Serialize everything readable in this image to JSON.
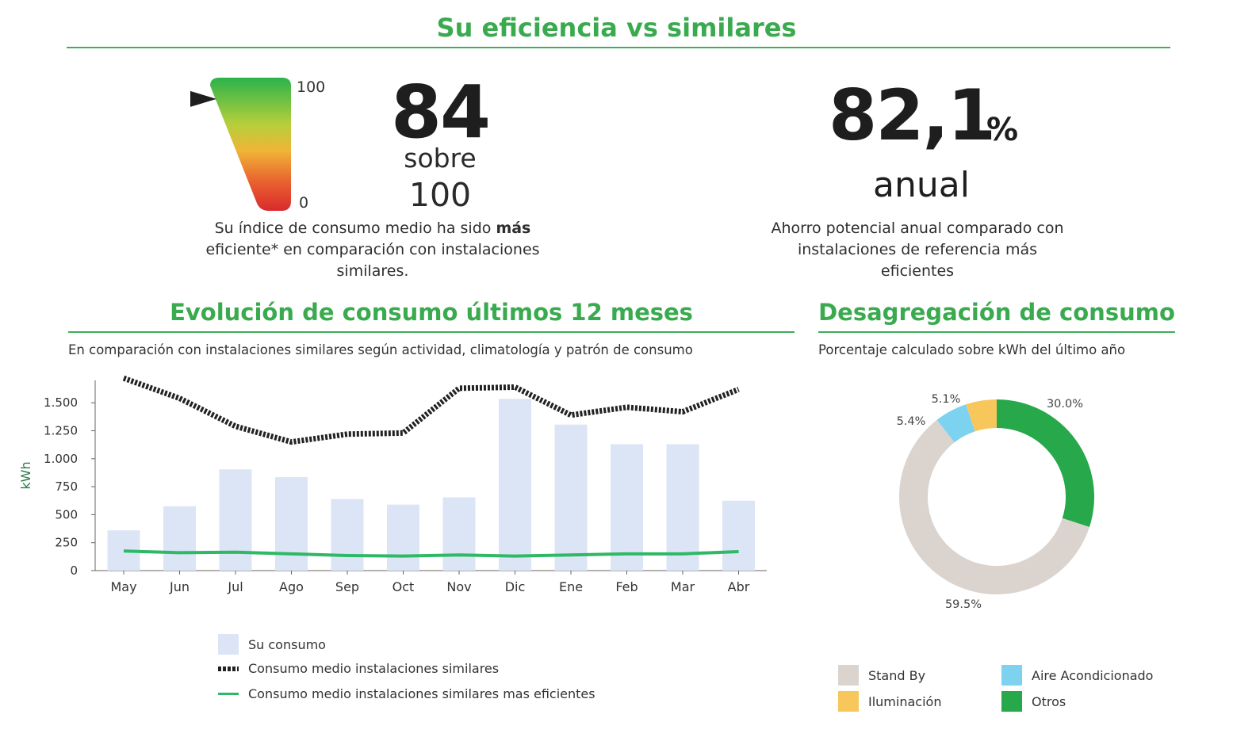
{
  "header": {
    "title": "Su eficiencia vs similares"
  },
  "efficiency": {
    "gauge_max": "100",
    "gauge_min": "0",
    "gauge_value": 84,
    "score": "84",
    "sobre": "sobre",
    "total": "100",
    "desc_pre": "Su índice de consumo medio ha sido ",
    "desc_bold": "más",
    "desc_post": " eficiente* en comparación con instalaciones similares."
  },
  "savings": {
    "value": "82,1",
    "unit": "%",
    "period": "anual",
    "desc": "Ahorro potencial anual comparado con instalaciones de referencia más eficientes"
  },
  "evolution": {
    "title": "Evolución de consumo últimos 12 meses",
    "subtitle": "En comparación con instalaciones similares según actividad, climatología y patrón de consumo"
  },
  "breakdown": {
    "title": "Desagregación de consumo",
    "subtitle": "Porcentaje calculado sobre kWh del último año"
  },
  "colors": {
    "accent": "#3aaa4f",
    "bar": "#dce5f5",
    "avg_line": "#222222",
    "eff_line": "#2fb866",
    "standby": "#dbd3ce",
    "aire": "#7dd2f0",
    "iluminacion": "#f8c75c",
    "otros": "#27a84a"
  },
  "chart_data": [
    {
      "type": "bar",
      "title": "Evolución de consumo últimos 12 meses",
      "xlabel": "",
      "ylabel": "kWh",
      "ylim": [
        0,
        1700
      ],
      "yticks": [
        0,
        250,
        500,
        750,
        1000,
        1250,
        1500
      ],
      "ytick_labels": [
        "0",
        "250",
        "500",
        "750",
        "1.000",
        "1.250",
        "1.500"
      ],
      "grid": false,
      "categories": [
        "May",
        "Jun",
        "Jul",
        "Ago",
        "Sep",
        "Oct",
        "Nov",
        "Dic",
        "Ene",
        "Feb",
        "Mar",
        "Abr"
      ],
      "series": [
        {
          "name": "Su consumo",
          "kind": "bar",
          "values": [
            360,
            575,
            905,
            835,
            640,
            590,
            655,
            1535,
            1305,
            1130,
            1130,
            625
          ]
        },
        {
          "name": "Consumo medio instalaciones similares",
          "kind": "line-dotted",
          "values": [
            1720,
            1540,
            1290,
            1150,
            1220,
            1230,
            1630,
            1640,
            1390,
            1460,
            1420,
            1620
          ]
        },
        {
          "name": "Consumo medio instalaciones similares mas eficientes",
          "kind": "line",
          "values": [
            175,
            160,
            165,
            150,
            135,
            130,
            140,
            130,
            140,
            150,
            150,
            170
          ]
        }
      ],
      "legend": [
        "Su consumo",
        "Consumo medio instalaciones similares",
        "Consumo medio instalaciones similares mas eficientes"
      ]
    },
    {
      "type": "pie",
      "title": "Desagregación de consumo",
      "slices": [
        {
          "name": "Otros",
          "value": 30.0,
          "label": "30.0%"
        },
        {
          "name": "Stand By",
          "value": 59.5,
          "label": "59.5%"
        },
        {
          "name": "Aire Acondicionado",
          "value": 5.4,
          "label": "5.4%"
        },
        {
          "name": "Iluminación",
          "value": 5.1,
          "label": "5.1%"
        }
      ],
      "legend": [
        "Stand By",
        "Aire Acondicionado",
        "Iluminación",
        "Otros"
      ]
    }
  ]
}
